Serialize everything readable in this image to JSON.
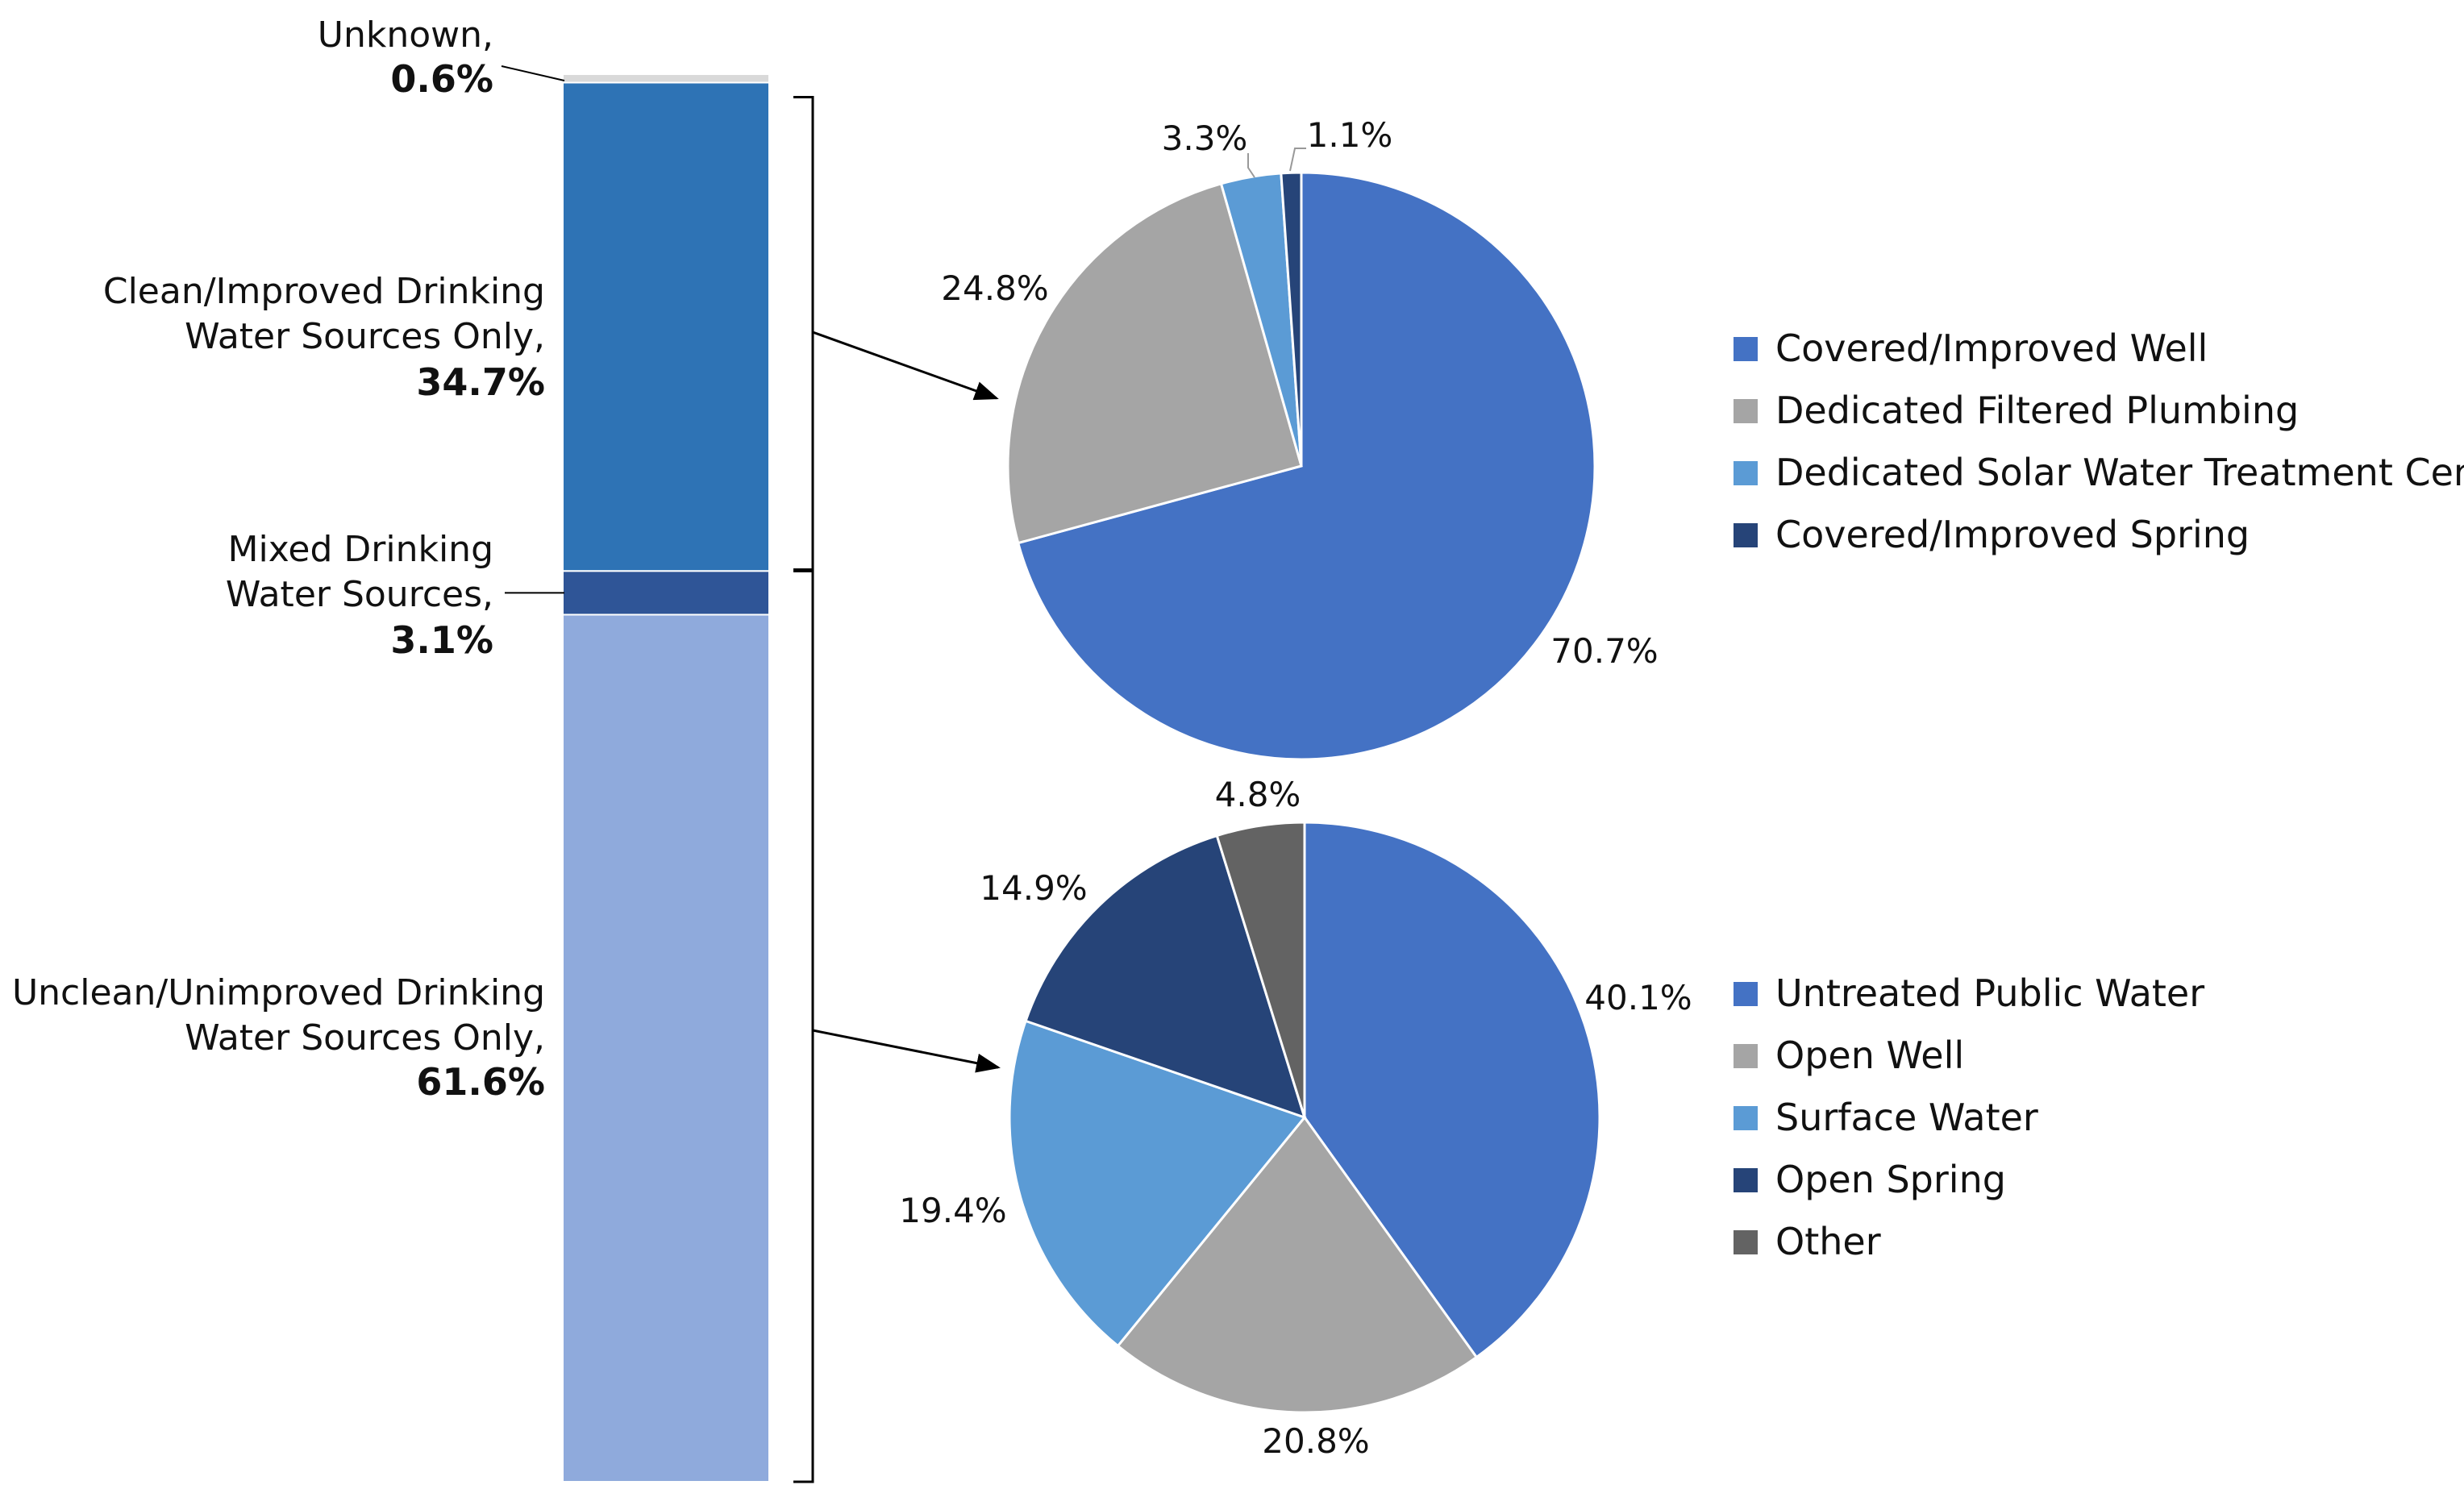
{
  "chart_data": [
    {
      "type": "bar",
      "orientation": "vertical-stacked-100",
      "title": "",
      "segments": [
        {
          "name": "Unknown,",
          "value": 0.6,
          "label": "0.6%",
          "color": "#d9d9d9",
          "caption": [
            "Unknown,"
          ]
        },
        {
          "name": "Clean/Improved Drinking Water Sources Only,",
          "value": 34.7,
          "label": "34.7%",
          "color": "#2e73b5",
          "caption": [
            "Clean/Improved Drinking",
            "Water Sources Only,"
          ]
        },
        {
          "name": "Mixed Drinking Water Sources,",
          "value": 3.1,
          "label": "3.1%",
          "color": "#2f5597",
          "caption": [
            "Mixed Drinking",
            "Water Sources,"
          ]
        },
        {
          "name": "Unclean/Unimproved Drinking Water Sources Only,",
          "value": 61.6,
          "label": "61.6%",
          "color": "#8faadc",
          "caption": [
            "Unclean/Unimproved Drinking",
            "Water Sources Only,"
          ]
        }
      ]
    },
    {
      "type": "pie",
      "title": "",
      "breakdown_of": "Clean/Improved Drinking Water Sources Only",
      "slices": [
        {
          "name": "Covered/Improved Well",
          "value": 70.7,
          "label": "70.7%",
          "color": "#4472c4"
        },
        {
          "name": "Dedicated Filtered Plumbing",
          "value": 24.8,
          "label": "24.8%",
          "color": "#a5a5a5"
        },
        {
          "name": "Dedicated Solar Water Treatment Center",
          "value": 3.3,
          "label": "3.3%",
          "color": "#5b9bd5"
        },
        {
          "name": "Covered/Improved Spring",
          "value": 1.1,
          "label": "1.1%",
          "color": "#264478"
        }
      ]
    },
    {
      "type": "pie",
      "title": "",
      "breakdown_of": "Unclean/Unimproved Drinking Water Sources Only",
      "slices": [
        {
          "name": "Untreated Public Water",
          "value": 40.1,
          "label": "40.1%",
          "color": "#4472c4"
        },
        {
          "name": "Open Well",
          "value": 20.8,
          "label": "20.8%",
          "color": "#a5a5a5"
        },
        {
          "name": "Surface Water",
          "value": 19.4,
          "label": "19.4%",
          "color": "#5b9bd5"
        },
        {
          "name": "Open Spring",
          "value": 14.9,
          "label": "14.9%",
          "color": "#264478"
        },
        {
          "name": "Other",
          "value": 4.8,
          "label": "4.8%",
          "color": "#636363"
        }
      ]
    }
  ]
}
